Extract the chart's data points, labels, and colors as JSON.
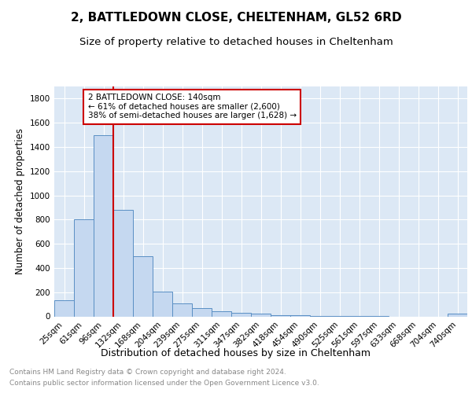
{
  "title": "2, BATTLEDOWN CLOSE, CHELTENHAM, GL52 6RD",
  "subtitle": "Size of property relative to detached houses in Cheltenham",
  "xlabel": "Distribution of detached houses by size in Cheltenham",
  "ylabel": "Number of detached properties",
  "bar_labels": [
    "25sqm",
    "61sqm",
    "96sqm",
    "132sqm",
    "168sqm",
    "204sqm",
    "239sqm",
    "275sqm",
    "311sqm",
    "347sqm",
    "382sqm",
    "418sqm",
    "454sqm",
    "490sqm",
    "525sqm",
    "561sqm",
    "597sqm",
    "633sqm",
    "668sqm",
    "704sqm",
    "740sqm"
  ],
  "bar_values": [
    130,
    800,
    1500,
    880,
    500,
    205,
    110,
    68,
    45,
    32,
    25,
    10,
    10,
    5,
    5,
    5,
    2,
    0,
    0,
    0,
    20
  ],
  "bar_color": "#c5d8f0",
  "bar_edge_color": "#5a8fc4",
  "background_color": "#dce8f5",
  "vline_x": 2.5,
  "vline_color": "#cc0000",
  "annotation_text": "2 BATTLEDOWN CLOSE: 140sqm\n← 61% of detached houses are smaller (2,600)\n38% of semi-detached houses are larger (1,628) →",
  "annotation_box_color": "white",
  "annotation_box_edge": "#cc0000",
  "ylim": [
    0,
    1900
  ],
  "yticks": [
    0,
    200,
    400,
    600,
    800,
    1000,
    1200,
    1400,
    1600,
    1800
  ],
  "footer_line1": "Contains HM Land Registry data © Crown copyright and database right 2024.",
  "footer_line2": "Contains public sector information licensed under the Open Government Licence v3.0.",
  "title_fontsize": 11,
  "subtitle_fontsize": 9.5,
  "ylabel_fontsize": 8.5,
  "xlabel_fontsize": 9,
  "tick_fontsize": 7.5,
  "footer_fontsize": 6.5,
  "annotation_fontsize": 7.5
}
